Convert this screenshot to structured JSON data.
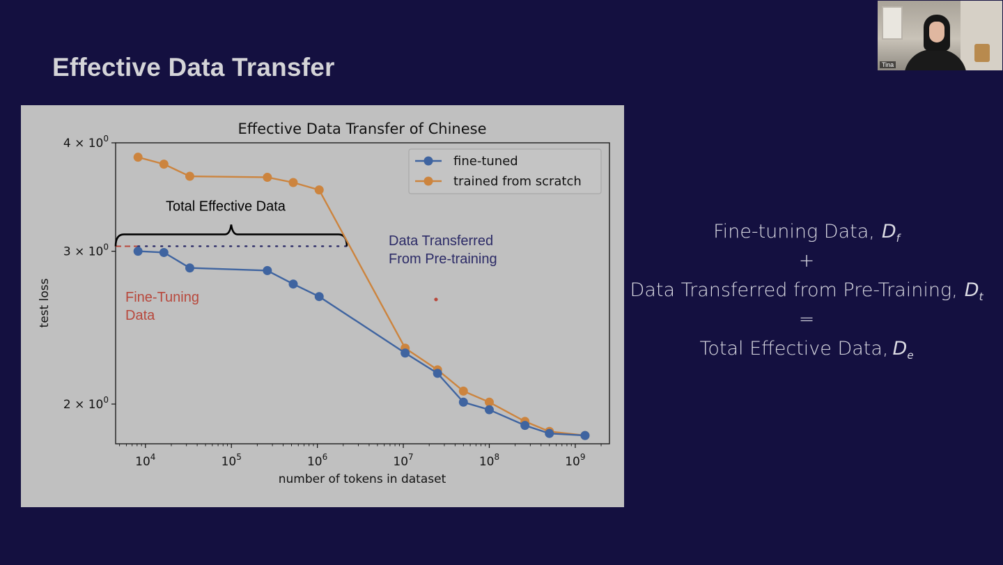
{
  "slide": {
    "title": "Effective Data Transfer"
  },
  "equation": {
    "line1": "Fine-tuning Data,",
    "line1_var": "D",
    "line1_sub": "f",
    "plus": "+",
    "line2": "Data Transferred from Pre-Training,",
    "line2_var": "D",
    "line2_sub": "t",
    "equals": "=",
    "line3": "Total Effective Data,",
    "line3_var": "D",
    "line3_sub": "e"
  },
  "webcam": {
    "name": "Tina"
  },
  "colors": {
    "background": "#141040",
    "panel": "#c0c0c0",
    "fine_tuned": "#3f64a0",
    "scratch": "#cc843e",
    "annotation_red": "#b8483c",
    "annotation_navy": "#2b2a66"
  },
  "chart_data": {
    "type": "line",
    "title": "Effective Data Transfer of Chinese",
    "xlabel": "number of tokens in dataset",
    "ylabel": "test loss",
    "xscale": "log",
    "yscale": "log",
    "xlim": [
      4500,
      2500000000
    ],
    "ylim": [
      1.8,
      4.0
    ],
    "xticks": [
      {
        "value": 10000,
        "label": "10",
        "exp": "4"
      },
      {
        "value": 100000,
        "label": "10",
        "exp": "5"
      },
      {
        "value": 1000000,
        "label": "10",
        "exp": "6"
      },
      {
        "value": 10000000,
        "label": "10",
        "exp": "7"
      },
      {
        "value": 100000000,
        "label": "10",
        "exp": "8"
      },
      {
        "value": 1000000000,
        "label": "10",
        "exp": "9"
      }
    ],
    "yticks": [
      {
        "value": 4,
        "label": "4 × 10",
        "exp": "0"
      },
      {
        "value": 3,
        "label": "3 × 10",
        "exp": "0"
      },
      {
        "value": 2,
        "label": "2 × 10",
        "exp": "0"
      }
    ],
    "grid": false,
    "legend_position": "top-right",
    "series": [
      {
        "name": "fine-tuned",
        "color": "#3f64a0",
        "x": [
          8200,
          16400,
          32800,
          262000,
          524000,
          1050000,
          10500000,
          25000000,
          50000000,
          100000000,
          260000000,
          500000000,
          1300000000
        ],
        "y": [
          3.0,
          2.99,
          2.87,
          2.85,
          2.75,
          2.66,
          2.29,
          2.17,
          2.01,
          1.97,
          1.89,
          1.85,
          1.84
        ]
      },
      {
        "name": "trained from scratch",
        "color": "#cc843e",
        "x": [
          8200,
          16400,
          32800,
          262000,
          524000,
          1050000,
          10500000,
          25000000,
          50000000,
          100000000,
          260000000,
          500000000,
          1300000000
        ],
        "y": [
          3.85,
          3.78,
          3.66,
          3.65,
          3.6,
          3.53,
          2.32,
          2.19,
          2.07,
          2.01,
          1.91,
          1.86,
          1.84
        ]
      }
    ],
    "annotations": {
      "total_effective_data": "Total Effective Data",
      "fine_tuning_data_line1": "Fine-Tuning",
      "fine_tuning_data_line2": "Data",
      "transferred_line1": "Data Transferred",
      "transferred_line2": "From Pre-training",
      "bracket_x_range": [
        4500,
        2200000
      ],
      "bracket_y": 3.04,
      "fine_tuning_segment_x": [
        4500,
        8200
      ],
      "transferred_segment_x": [
        8200,
        2200000
      ],
      "stray_point": {
        "x": 24000000,
        "y": 2.64
      }
    }
  }
}
